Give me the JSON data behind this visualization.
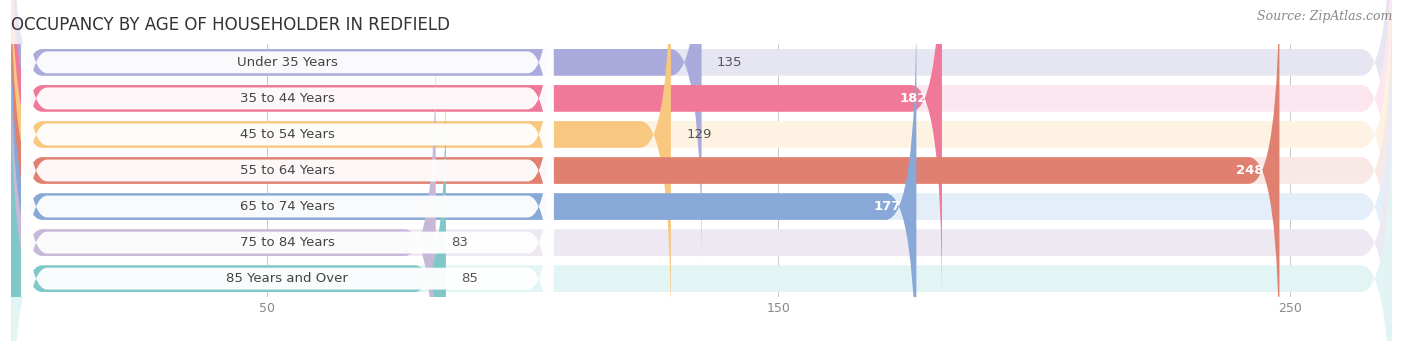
{
  "title": "OCCUPANCY BY AGE OF HOUSEHOLDER IN REDFIELD",
  "source": "Source: ZipAtlas.com",
  "categories": [
    "Under 35 Years",
    "35 to 44 Years",
    "45 to 54 Years",
    "55 to 64 Years",
    "65 to 74 Years",
    "75 to 84 Years",
    "85 Years and Over"
  ],
  "values": [
    135,
    182,
    129,
    248,
    177,
    83,
    85
  ],
  "bar_colors": [
    "#aaaadd",
    "#f07898",
    "#f8c880",
    "#e08070",
    "#88a8d8",
    "#c8b8d8",
    "#80c8c8"
  ],
  "bar_bg_colors": [
    "#e6e6f2",
    "#fce6f0",
    "#fef3e2",
    "#f8e8e6",
    "#e4eef8",
    "#ede8f2",
    "#e2f4f4"
  ],
  "label_colors": [
    "#555555",
    "#555555",
    "#555555",
    "#555555",
    "#555555",
    "#555555",
    "#555555"
  ],
  "value_inside": [
    false,
    true,
    false,
    true,
    true,
    false,
    false
  ],
  "xlim_max": 270,
  "xticks": [
    50,
    150,
    250
  ],
  "bar_height": 0.74,
  "title_fontsize": 12,
  "label_fontsize": 9.5,
  "value_fontsize": 9.5,
  "source_fontsize": 9,
  "bg_color": "#ffffff",
  "row_bg_color": "#f2f2f2"
}
